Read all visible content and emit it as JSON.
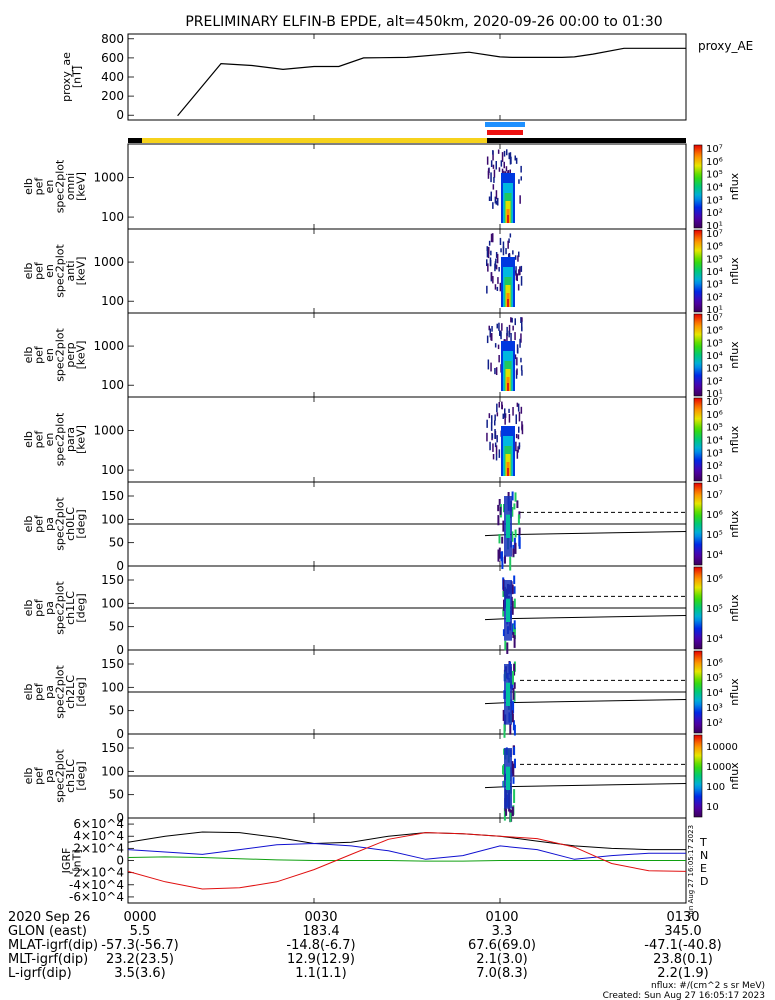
{
  "title": "PRELIMINARY ELFIN-B EPDE, alt=450km, 2020-09-26 00:00 to 01:30",
  "colors": {
    "ae_line": "#000000",
    "bar_yellow": "#f6d21c",
    "bar_black": "#000000",
    "bar_blue": "#1e90ff",
    "bar_red": "#ee1111",
    "grf_t": "#000000",
    "grf_n": "#1010d0",
    "grf_e": "#10a010",
    "grf_d": "#e01010"
  },
  "footer": {
    "rows": [
      {
        "label": "2020 Sep 26",
        "values": [
          "0000",
          "0030",
          "0100",
          "0130"
        ]
      },
      {
        "label": "GLON (east)",
        "values": [
          "5.5",
          "183.4",
          "3.3",
          "345.0"
        ]
      },
      {
        "label": "MLAT-igrf(dip)",
        "values": [
          "-57.3(-56.7)",
          "-14.8(-6.7)",
          "67.6(69.0)",
          "-47.1(-40.8)"
        ]
      },
      {
        "label": "MLT-igrf(dip)",
        "values": [
          "23.2(23.5)",
          "12.9(12.9)",
          "2.1(3.0)",
          "23.8(0.1)"
        ]
      },
      {
        "label": "L-igrf(dip)",
        "values": [
          "3.5(3.6)",
          "1.1(1.1)",
          "7.0(8.3)",
          "2.2(1.9)"
        ]
      }
    ],
    "unit_note": "nflux: #/(cm^2 s sr MeV)",
    "created": "Created: Sun Aug 27 16:05:17 2023",
    "side_stamp": "Sun Aug 27 16:05:17 2023"
  },
  "chart_data": [
    {
      "type": "line",
      "panel": "ae",
      "ylabel": "proxy_ae [nT]",
      "legend": "proxy_AE",
      "ylim": [
        -50,
        850
      ],
      "yticks": [
        "0",
        "200",
        "400",
        "600",
        "800"
      ],
      "x_minutes": [
        8,
        15,
        20,
        25,
        30,
        34,
        38,
        45,
        55,
        60,
        62,
        70,
        72,
        75,
        80,
        83,
        85,
        90
      ],
      "values": [
        -5,
        540,
        520,
        480,
        510,
        510,
        600,
        605,
        660,
        610,
        605,
        605,
        610,
        640,
        700,
        700,
        700,
        700
      ]
    },
    {
      "type": "heatmap",
      "panel": "spec_omni",
      "ylabel": "elb pef en spec2plot omni [keV]",
      "scale": "log",
      "ylim": [
        50,
        7000
      ],
      "yticks": [
        "100",
        "1000"
      ],
      "zlabel": "nflux",
      "ztick_exponents": [
        1,
        2,
        3,
        4,
        5,
        6,
        7
      ]
    },
    {
      "type": "heatmap",
      "panel": "spec_anti",
      "ylabel": "elb pef en spec2plot anti [keV]",
      "scale": "log",
      "ylim": [
        50,
        7000
      ],
      "yticks": [
        "100",
        "1000"
      ],
      "zlabel": "nflux",
      "ztick_exponents": [
        1,
        2,
        3,
        4,
        5,
        6,
        7
      ]
    },
    {
      "type": "heatmap",
      "panel": "spec_perp",
      "ylabel": "elb pef en spec2plot perp [keV]",
      "scale": "log",
      "ylim": [
        50,
        7000
      ],
      "yticks": [
        "100",
        "1000"
      ],
      "zlabel": "nflux",
      "ztick_exponents": [
        1,
        2,
        3,
        4,
        5,
        6,
        7
      ]
    },
    {
      "type": "heatmap",
      "panel": "spec_para",
      "ylabel": "elb pef en spec2plot para [keV]",
      "scale": "log",
      "ylim": [
        50,
        7000
      ],
      "yticks": [
        "100",
        "1000"
      ],
      "zlabel": "nflux",
      "ztick_exponents": [
        1,
        2,
        3,
        4,
        5,
        6,
        7
      ]
    },
    {
      "type": "heatmap",
      "panel": "pa_ch0",
      "ylabel": "elb pef pa spec2plot ch0LC [deg]",
      "ylim": [
        0,
        180
      ],
      "yticks": [
        "0",
        "50",
        "100",
        "150"
      ],
      "zlabel": "nflux",
      "zticks": [
        "10^4",
        "10^5",
        "10^6",
        "10^7"
      ]
    },
    {
      "type": "heatmap",
      "panel": "pa_ch1",
      "ylabel": "elb pef pa spec2plot ch1LC [deg]",
      "ylim": [
        0,
        180
      ],
      "yticks": [
        "0",
        "50",
        "100",
        "150"
      ],
      "zlabel": "nflux",
      "zticks": [
        "10^4",
        "10^5",
        "10^6"
      ]
    },
    {
      "type": "heatmap",
      "panel": "pa_ch2",
      "ylabel": "elb pef pa spec2plot ch2LC [deg]",
      "ylim": [
        0,
        180
      ],
      "yticks": [
        "0",
        "50",
        "100",
        "150"
      ],
      "zlabel": "nflux",
      "zticks": [
        "10^2",
        "10^3",
        "10^4",
        "10^5",
        "10^6"
      ]
    },
    {
      "type": "heatmap",
      "panel": "pa_ch3",
      "ylabel": "elb pef pa spec2plot ch3LC [deg]",
      "ylim": [
        0,
        180
      ],
      "yticks": [
        "0",
        "50",
        "100",
        "150"
      ],
      "zlabel": "nflux",
      "zticks": [
        "10",
        "100",
        "1000",
        "10000"
      ]
    },
    {
      "type": "line",
      "panel": "igrf",
      "ylabel": "IGRF [nT]",
      "ylim": [
        -70000,
        70000
      ],
      "yticks": [
        "6×10^4",
        "4×10^4",
        "2×10^4",
        "0",
        "-2×10^4",
        "-4×10^4",
        "-6×10^4"
      ],
      "legend": [
        "T",
        "N",
        "E",
        "D"
      ],
      "series": [
        {
          "name": "T",
          "x_minutes": [
            0,
            6,
            12,
            18,
            24,
            30,
            36,
            42,
            48,
            54,
            60,
            66,
            72,
            78,
            84,
            90
          ],
          "values": [
            30000,
            40000,
            47000,
            46000,
            38000,
            28000,
            30000,
            40000,
            46000,
            44000,
            40000,
            32000,
            24000,
            20000,
            18000,
            18000
          ]
        },
        {
          "name": "N",
          "x_minutes": [
            0,
            6,
            12,
            18,
            24,
            30,
            36,
            42,
            48,
            54,
            60,
            66,
            72,
            78,
            84,
            90
          ],
          "values": [
            18000,
            14000,
            10000,
            18000,
            26000,
            28000,
            24000,
            16000,
            2000,
            8000,
            24000,
            18000,
            2000,
            8000,
            12000,
            12000
          ]
        },
        {
          "name": "E",
          "x_minutes": [
            0,
            6,
            12,
            18,
            24,
            30,
            36,
            42,
            48,
            54,
            60,
            66,
            72,
            78,
            84,
            90
          ],
          "values": [
            5000,
            6000,
            5000,
            3000,
            1000,
            0,
            0,
            0,
            -1000,
            -1000,
            0,
            0,
            0,
            0,
            0,
            0
          ]
        },
        {
          "name": "D",
          "x_minutes": [
            0,
            6,
            12,
            18,
            24,
            30,
            36,
            42,
            48,
            54,
            60,
            66,
            72,
            78,
            84,
            90
          ],
          "values": [
            -18000,
            -35000,
            -47000,
            -45000,
            -35000,
            -15000,
            10000,
            35000,
            46000,
            44000,
            40000,
            36000,
            22000,
            -5000,
            -17000,
            -18000
          ]
        }
      ]
    }
  ]
}
